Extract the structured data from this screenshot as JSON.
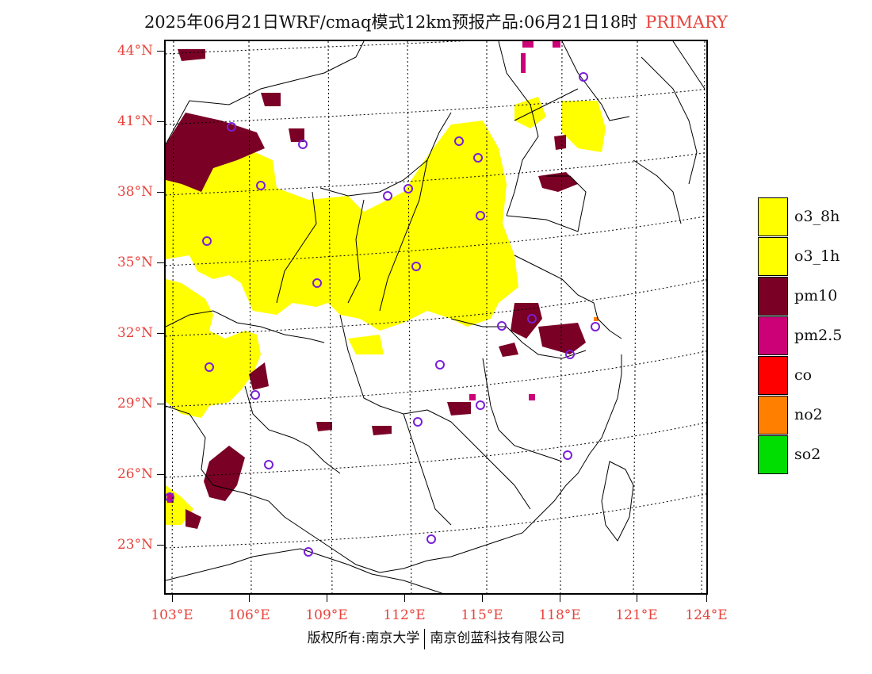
{
  "title": {
    "main": "2025年06月21日WRF/cmaq模式12km预报产品:06月21日18时",
    "tag": "PRIMARY",
    "tag_color": "#e8433c"
  },
  "map": {
    "lat_labels": [
      "44°N",
      "41°N",
      "38°N",
      "35°N",
      "32°N",
      "29°N",
      "26°N",
      "23°N"
    ],
    "lon_labels": [
      "103°E",
      "106°E",
      "109°E",
      "112°E",
      "115°E",
      "118°E",
      "121°E",
      "124°E"
    ],
    "label_color": "#e8433c"
  },
  "legend": [
    {
      "label": "o3_8h",
      "color": "#ffff00"
    },
    {
      "label": "o3_1h",
      "color": "#ffff00"
    },
    {
      "label": "pm10",
      "color": "#7a0026"
    },
    {
      "label": "pm2.5",
      "color": "#cc0077"
    },
    {
      "label": "co",
      "color": "#ff0000"
    },
    {
      "label": "no2",
      "color": "#ff8000"
    },
    {
      "label": "so2",
      "color": "#00dd00"
    }
  ],
  "footer": {
    "left": "版权所有:南京大学",
    "right": "南京创蓝科技有限公司"
  }
}
